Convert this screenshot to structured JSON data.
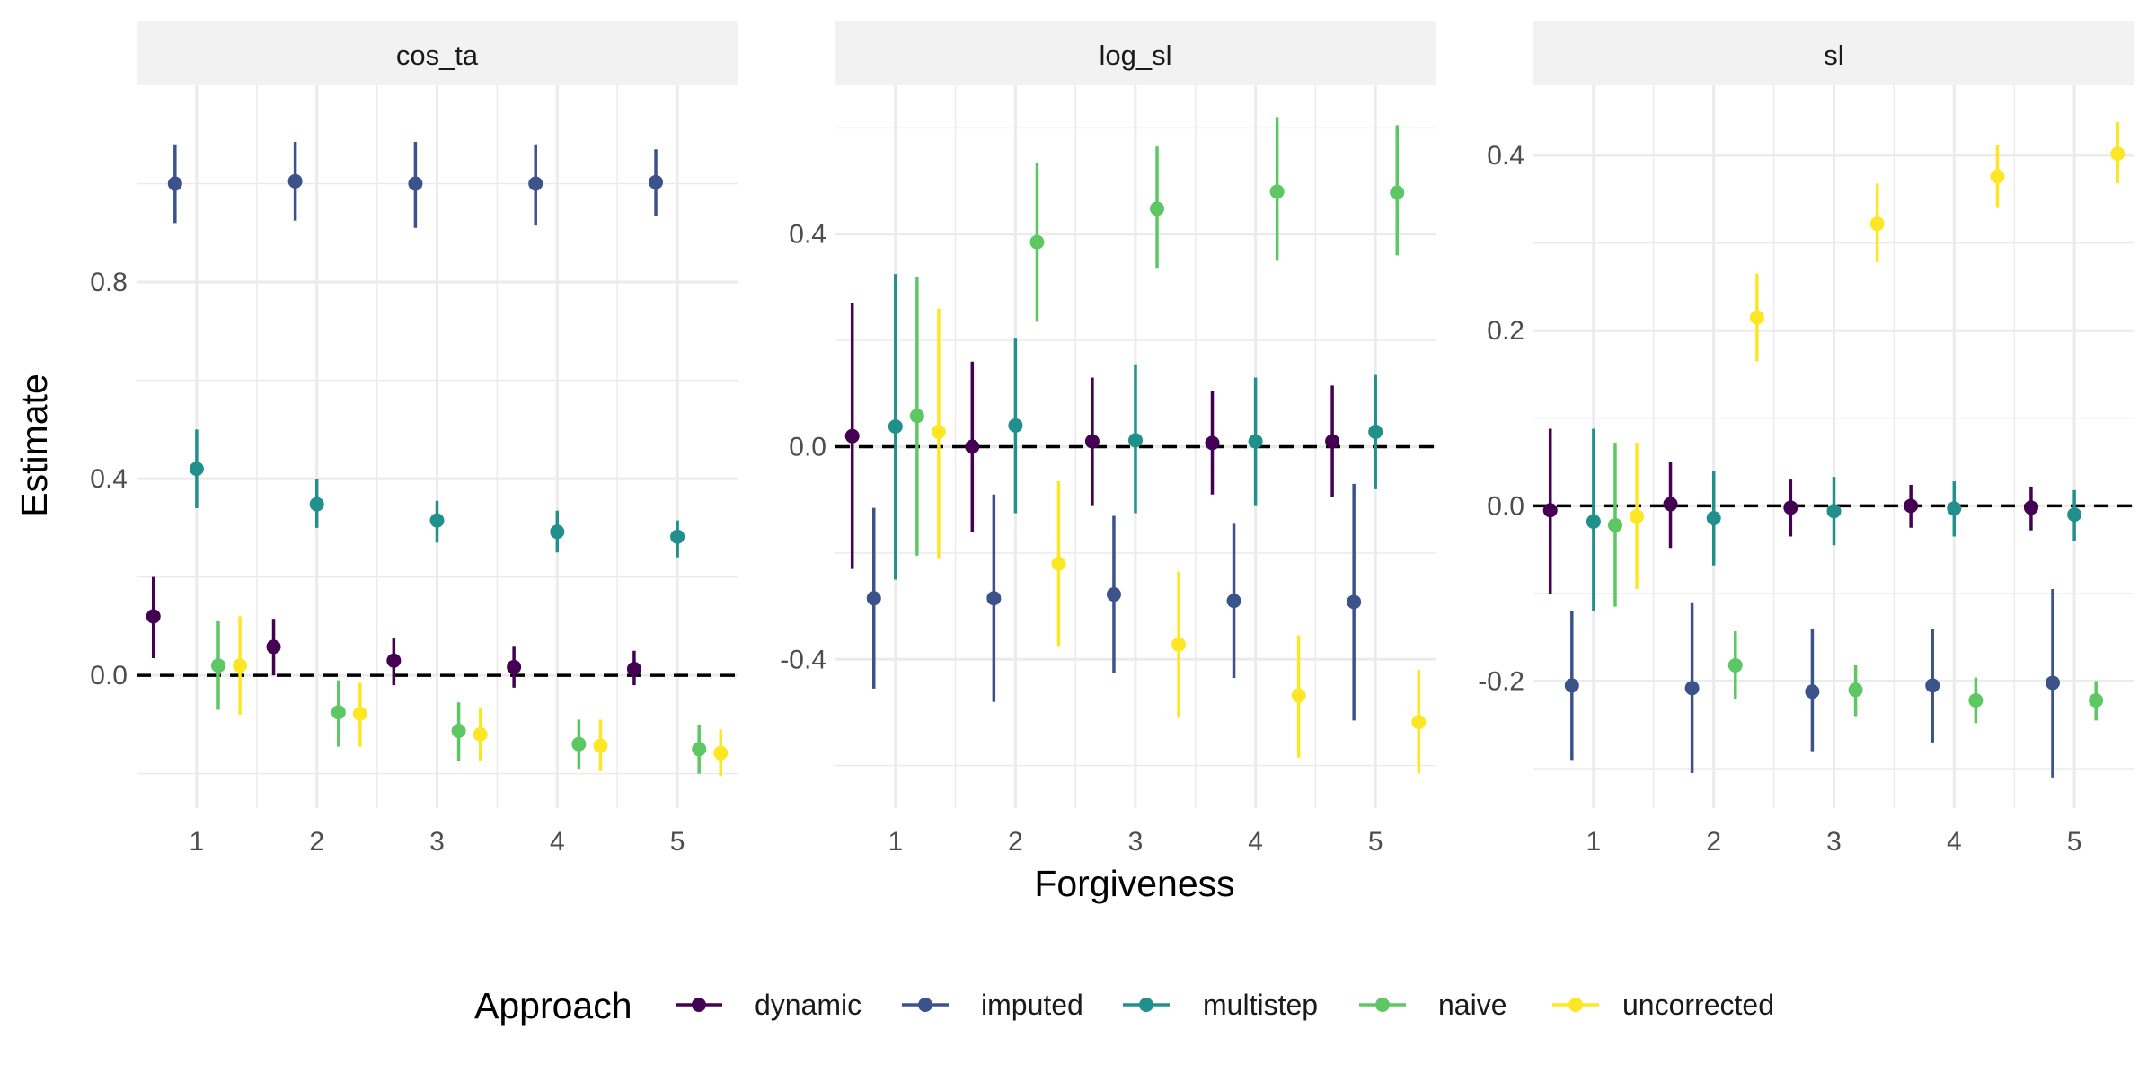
{
  "chart_data": {
    "type": "scatter",
    "subtype": "point-range (faceted)",
    "title": "",
    "xlabel": "Forgiveness",
    "ylabel": "Estimate",
    "x": [
      1,
      2,
      3,
      4,
      5
    ],
    "reference_line": {
      "y": 0,
      "style": "dashed",
      "color": "#000000"
    },
    "grid": true,
    "legend": {
      "title": "Approach",
      "position": "bottom",
      "entries": [
        "dynamic",
        "imputed",
        "multistep",
        "naive",
        "uncorrected"
      ]
    },
    "colors": {
      "dynamic": "#440154",
      "imputed": "#3B528B",
      "multistep": "#21908C",
      "naive": "#5DC863",
      "uncorrected": "#FDE725"
    },
    "panels": [
      {
        "name": "cos_ta",
        "ylim": [
          -0.27,
          1.2
        ],
        "yticks": [
          0.0,
          0.4,
          0.8
        ],
        "yticklabels": [
          "0.0",
          "0.4",
          "0.8"
        ],
        "series": [
          {
            "name": "dynamic",
            "points": [
              {
                "x": 1,
                "y": 0.12,
                "lo": 0.035,
                "hi": 0.2
              },
              {
                "x": 2,
                "y": 0.058,
                "lo": 0.0,
                "hi": 0.115
              },
              {
                "x": 3,
                "y": 0.03,
                "lo": -0.02,
                "hi": 0.075
              },
              {
                "x": 4,
                "y": 0.017,
                "lo": -0.025,
                "hi": 0.06
              },
              {
                "x": 5,
                "y": 0.013,
                "lo": -0.02,
                "hi": 0.05
              }
            ]
          },
          {
            "name": "imputed",
            "points": [
              {
                "x": 1,
                "y": 1.0,
                "lo": 0.92,
                "hi": 1.08
              },
              {
                "x": 2,
                "y": 1.005,
                "lo": 0.925,
                "hi": 1.085
              },
              {
                "x": 3,
                "y": 1.0,
                "lo": 0.91,
                "hi": 1.085
              },
              {
                "x": 4,
                "y": 1.0,
                "lo": 0.915,
                "hi": 1.08
              },
              {
                "x": 5,
                "y": 1.003,
                "lo": 0.935,
                "hi": 1.07
              }
            ]
          },
          {
            "name": "multistep",
            "points": [
              {
                "x": 1,
                "y": 0.42,
                "lo": 0.34,
                "hi": 0.5
              },
              {
                "x": 2,
                "y": 0.348,
                "lo": 0.3,
                "hi": 0.4
              },
              {
                "x": 3,
                "y": 0.315,
                "lo": 0.27,
                "hi": 0.355
              },
              {
                "x": 4,
                "y": 0.292,
                "lo": 0.25,
                "hi": 0.335
              },
              {
                "x": 5,
                "y": 0.282,
                "lo": 0.24,
                "hi": 0.315
              }
            ]
          },
          {
            "name": "naive",
            "points": [
              {
                "x": 1,
                "y": 0.02,
                "lo": -0.07,
                "hi": 0.11
              },
              {
                "x": 2,
                "y": -0.075,
                "lo": -0.145,
                "hi": -0.01
              },
              {
                "x": 3,
                "y": -0.113,
                "lo": -0.175,
                "hi": -0.055
              },
              {
                "x": 4,
                "y": -0.14,
                "lo": -0.19,
                "hi": -0.09
              },
              {
                "x": 5,
                "y": -0.15,
                "lo": -0.2,
                "hi": -0.1
              }
            ]
          },
          {
            "name": "uncorrected",
            "points": [
              {
                "x": 1,
                "y": 0.02,
                "lo": -0.08,
                "hi": 0.12
              },
              {
                "x": 2,
                "y": -0.078,
                "lo": -0.145,
                "hi": -0.015
              },
              {
                "x": 3,
                "y": -0.12,
                "lo": -0.175,
                "hi": -0.065
              },
              {
                "x": 4,
                "y": -0.143,
                "lo": -0.195,
                "hi": -0.09
              },
              {
                "x": 5,
                "y": -0.158,
                "lo": -0.205,
                "hi": -0.11
              }
            ]
          }
        ]
      },
      {
        "name": "log_sl",
        "ylim": [
          -0.68,
          0.68
        ],
        "yticks": [
          -0.4,
          0.0,
          0.4
        ],
        "yticklabels": [
          "-0.4",
          "0.0",
          "0.4"
        ],
        "series": [
          {
            "name": "dynamic",
            "points": [
              {
                "x": 1,
                "y": 0.02,
                "lo": -0.23,
                "hi": 0.27
              },
              {
                "x": 2,
                "y": 0.0,
                "lo": -0.16,
                "hi": 0.16
              },
              {
                "x": 3,
                "y": 0.01,
                "lo": -0.11,
                "hi": 0.13
              },
              {
                "x": 4,
                "y": 0.007,
                "lo": -0.09,
                "hi": 0.105
              },
              {
                "x": 5,
                "y": 0.01,
                "lo": -0.095,
                "hi": 0.115
              }
            ]
          },
          {
            "name": "imputed",
            "points": [
              {
                "x": 1,
                "y": -0.285,
                "lo": -0.455,
                "hi": -0.115
              },
              {
                "x": 2,
                "y": -0.285,
                "lo": -0.48,
                "hi": -0.09
              },
              {
                "x": 3,
                "y": -0.278,
                "lo": -0.425,
                "hi": -0.13
              },
              {
                "x": 4,
                "y": -0.29,
                "lo": -0.435,
                "hi": -0.145
              },
              {
                "x": 5,
                "y": -0.292,
                "lo": -0.515,
                "hi": -0.07
              }
            ]
          },
          {
            "name": "multistep",
            "points": [
              {
                "x": 1,
                "y": 0.038,
                "lo": -0.25,
                "hi": 0.325
              },
              {
                "x": 2,
                "y": 0.04,
                "lo": -0.125,
                "hi": 0.205
              },
              {
                "x": 3,
                "y": 0.012,
                "lo": -0.125,
                "hi": 0.155
              },
              {
                "x": 4,
                "y": 0.01,
                "lo": -0.11,
                "hi": 0.13
              },
              {
                "x": 5,
                "y": 0.028,
                "lo": -0.08,
                "hi": 0.135
              }
            ]
          },
          {
            "name": "naive",
            "points": [
              {
                "x": 1,
                "y": 0.058,
                "lo": -0.205,
                "hi": 0.32
              },
              {
                "x": 2,
                "y": 0.385,
                "lo": 0.235,
                "hi": 0.535
              },
              {
                "x": 3,
                "y": 0.448,
                "lo": 0.335,
                "hi": 0.565
              },
              {
                "x": 4,
                "y": 0.48,
                "lo": 0.35,
                "hi": 0.62
              },
              {
                "x": 5,
                "y": 0.478,
                "lo": 0.36,
                "hi": 0.605
              }
            ]
          },
          {
            "name": "uncorrected",
            "points": [
              {
                "x": 1,
                "y": 0.028,
                "lo": -0.21,
                "hi": 0.26
              },
              {
                "x": 2,
                "y": -0.22,
                "lo": -0.375,
                "hi": -0.065
              },
              {
                "x": 3,
                "y": -0.372,
                "lo": -0.51,
                "hi": -0.235
              },
              {
                "x": 4,
                "y": -0.468,
                "lo": -0.585,
                "hi": -0.355
              },
              {
                "x": 5,
                "y": -0.518,
                "lo": -0.615,
                "hi": -0.42
              }
            ]
          }
        ]
      },
      {
        "name": "sl",
        "ylim": [
          -0.345,
          0.48
        ],
        "yticks": [
          -0.2,
          0.0,
          0.2,
          0.4
        ],
        "yticklabels": [
          "-0.2",
          "0.0",
          "0.2",
          "0.4"
        ],
        "series": [
          {
            "name": "dynamic",
            "points": [
              {
                "x": 1,
                "y": -0.005,
                "lo": -0.1,
                "hi": 0.088
              },
              {
                "x": 2,
                "y": 0.002,
                "lo": -0.048,
                "hi": 0.05
              },
              {
                "x": 3,
                "y": -0.002,
                "lo": -0.035,
                "hi": 0.03
              },
              {
                "x": 4,
                "y": 0.0,
                "lo": -0.025,
                "hi": 0.024
              },
              {
                "x": 5,
                "y": -0.002,
                "lo": -0.028,
                "hi": 0.022
              }
            ]
          },
          {
            "name": "imputed",
            "points": [
              {
                "x": 1,
                "y": -0.205,
                "lo": -0.29,
                "hi": -0.12
              },
              {
                "x": 2,
                "y": -0.208,
                "lo": -0.305,
                "hi": -0.11
              },
              {
                "x": 3,
                "y": -0.212,
                "lo": -0.28,
                "hi": -0.14
              },
              {
                "x": 4,
                "y": -0.205,
                "lo": -0.27,
                "hi": -0.14
              },
              {
                "x": 5,
                "y": -0.202,
                "lo": -0.31,
                "hi": -0.095
              }
            ]
          },
          {
            "name": "multistep",
            "points": [
              {
                "x": 1,
                "y": -0.018,
                "lo": -0.12,
                "hi": 0.088
              },
              {
                "x": 2,
                "y": -0.014,
                "lo": -0.068,
                "hi": 0.04
              },
              {
                "x": 3,
                "y": -0.006,
                "lo": -0.045,
                "hi": 0.033
              },
              {
                "x": 4,
                "y": -0.003,
                "lo": -0.035,
                "hi": 0.028
              },
              {
                "x": 5,
                "y": -0.01,
                "lo": -0.04,
                "hi": 0.018
              }
            ]
          },
          {
            "name": "naive",
            "points": [
              {
                "x": 1,
                "y": -0.022,
                "lo": -0.115,
                "hi": 0.072
              },
              {
                "x": 2,
                "y": -0.182,
                "lo": -0.22,
                "hi": -0.143
              },
              {
                "x": 3,
                "y": -0.21,
                "lo": -0.24,
                "hi": -0.182
              },
              {
                "x": 4,
                "y": -0.222,
                "lo": -0.248,
                "hi": -0.196
              },
              {
                "x": 5,
                "y": -0.222,
                "lo": -0.245,
                "hi": -0.2
              }
            ]
          },
          {
            "name": "uncorrected",
            "points": [
              {
                "x": 1,
                "y": -0.012,
                "lo": -0.095,
                "hi": 0.072
              },
              {
                "x": 2,
                "y": 0.215,
                "lo": 0.165,
                "hi": 0.265
              },
              {
                "x": 3,
                "y": 0.322,
                "lo": 0.278,
                "hi": 0.368
              },
              {
                "x": 4,
                "y": 0.376,
                "lo": 0.34,
                "hi": 0.412
              },
              {
                "x": 5,
                "y": 0.402,
                "lo": 0.368,
                "hi": 0.438
              }
            ]
          }
        ]
      }
    ]
  }
}
